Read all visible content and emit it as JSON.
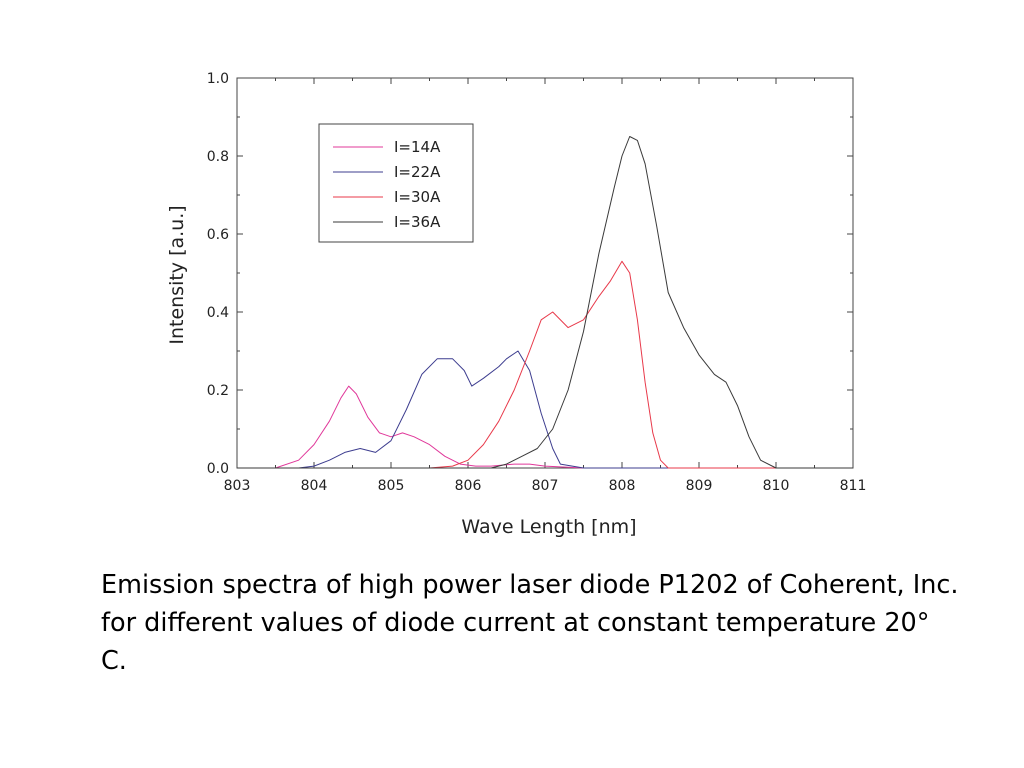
{
  "chart_data": {
    "type": "line",
    "xlabel": "Wave Length [nm]",
    "ylabel": "Intensity [a.u.]",
    "xlim": [
      803,
      811
    ],
    "ylim": [
      0,
      1.0
    ],
    "xticks": [
      "803",
      "804",
      "805",
      "806",
      "807",
      "808",
      "809",
      "810",
      "811"
    ],
    "yticks": [
      "0.0",
      "0.2",
      "0.4",
      "0.6",
      "0.8",
      "1.0"
    ],
    "grid": false,
    "legend_position": "top-left",
    "series": [
      {
        "name": "I=14A",
        "color": "#e0389a",
        "x": [
          803.0,
          803.5,
          803.8,
          804.0,
          804.2,
          804.35,
          804.45,
          804.55,
          804.7,
          804.85,
          805.0,
          805.15,
          805.3,
          805.5,
          805.7,
          805.9,
          806.1,
          806.3,
          806.6,
          806.8,
          807.0,
          807.5,
          808.0,
          808.5,
          809.0,
          810.0,
          811.0
        ],
        "y": [
          0.0,
          0.0,
          0.02,
          0.06,
          0.12,
          0.18,
          0.21,
          0.19,
          0.13,
          0.09,
          0.08,
          0.09,
          0.08,
          0.06,
          0.03,
          0.01,
          0.005,
          0.005,
          0.01,
          0.01,
          0.005,
          0.0,
          0.0,
          0.0,
          0.0,
          0.0,
          0.0
        ]
      },
      {
        "name": "I=22A",
        "color": "#3d3d8f",
        "x": [
          803.0,
          803.8,
          804.0,
          804.2,
          804.4,
          804.6,
          804.8,
          805.0,
          805.2,
          805.4,
          805.6,
          805.8,
          805.95,
          806.05,
          806.2,
          806.4,
          806.5,
          806.65,
          806.8,
          806.95,
          807.1,
          807.2,
          807.5,
          808.0,
          809.0,
          811.0
        ],
        "y": [
          0.0,
          0.0,
          0.005,
          0.02,
          0.04,
          0.05,
          0.04,
          0.07,
          0.15,
          0.24,
          0.28,
          0.28,
          0.25,
          0.21,
          0.23,
          0.26,
          0.28,
          0.3,
          0.25,
          0.14,
          0.05,
          0.01,
          0.0,
          0.0,
          0.0,
          0.0
        ]
      },
      {
        "name": "I=30A",
        "color": "#e8394a",
        "x": [
          803.0,
          805.5,
          805.8,
          806.0,
          806.2,
          806.4,
          806.6,
          806.8,
          806.95,
          807.1,
          807.3,
          807.5,
          807.7,
          807.85,
          808.0,
          808.1,
          808.2,
          808.3,
          808.4,
          808.5,
          808.6,
          809.0,
          811.0
        ],
        "y": [
          0.0,
          0.0,
          0.005,
          0.02,
          0.06,
          0.12,
          0.2,
          0.3,
          0.38,
          0.4,
          0.36,
          0.38,
          0.44,
          0.48,
          0.53,
          0.5,
          0.38,
          0.22,
          0.09,
          0.02,
          0.0,
          0.0,
          0.0
        ]
      },
      {
        "name": "I=36A",
        "color": "#3a3a3a",
        "x": [
          803.0,
          806.3,
          806.5,
          806.7,
          806.9,
          807.1,
          807.3,
          807.5,
          807.7,
          807.9,
          808.0,
          808.1,
          808.2,
          808.3,
          808.45,
          808.6,
          808.8,
          809.0,
          809.2,
          809.35,
          809.5,
          809.65,
          809.8,
          810.0,
          811.0
        ],
        "y": [
          0.0,
          0.0,
          0.01,
          0.03,
          0.05,
          0.1,
          0.2,
          0.35,
          0.55,
          0.72,
          0.8,
          0.85,
          0.84,
          0.78,
          0.62,
          0.45,
          0.36,
          0.29,
          0.24,
          0.22,
          0.16,
          0.08,
          0.02,
          0.0,
          0.0
        ]
      }
    ]
  },
  "caption": "Emission spectra of high power laser diode P1202 of Coherent, Inc. for different values of diode current at constant temperature 20° C."
}
